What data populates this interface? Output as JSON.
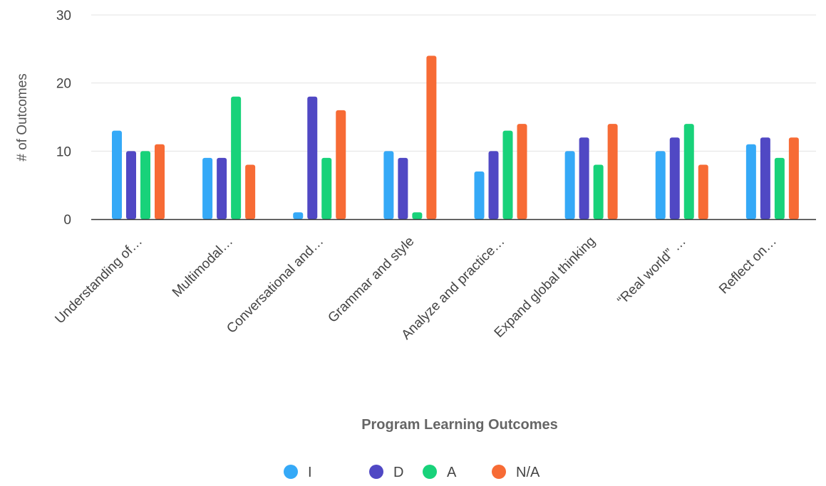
{
  "chart_data": {
    "type": "bar",
    "title": "",
    "xlabel": "Program Learning Outcomes",
    "ylabel": "# of Outcomes",
    "ylim": [
      0,
      30
    ],
    "yticks": [
      0,
      10,
      20,
      30
    ],
    "grid": true,
    "legend_position": "bottom",
    "categories": [
      "Understanding of…",
      "Multimodal…",
      "Conversational and…",
      "Grammar and style",
      "Analyze and practice…",
      "Expand global thinking",
      "“Real world” …",
      "Reflect on…"
    ],
    "series": [
      {
        "name": "I",
        "color": "#35A9F7",
        "values": [
          13,
          9,
          1,
          10,
          7,
          10,
          10,
          11
        ]
      },
      {
        "name": "D",
        "color": "#5048C4",
        "values": [
          10,
          9,
          18,
          9,
          10,
          12,
          12,
          12
        ]
      },
      {
        "name": "A",
        "color": "#18D27A",
        "values": [
          10,
          18,
          9,
          1,
          13,
          8,
          14,
          9
        ]
      },
      {
        "name": "N/A",
        "color": "#F76B35",
        "values": [
          11,
          8,
          16,
          24,
          14,
          14,
          8,
          12
        ]
      }
    ]
  }
}
